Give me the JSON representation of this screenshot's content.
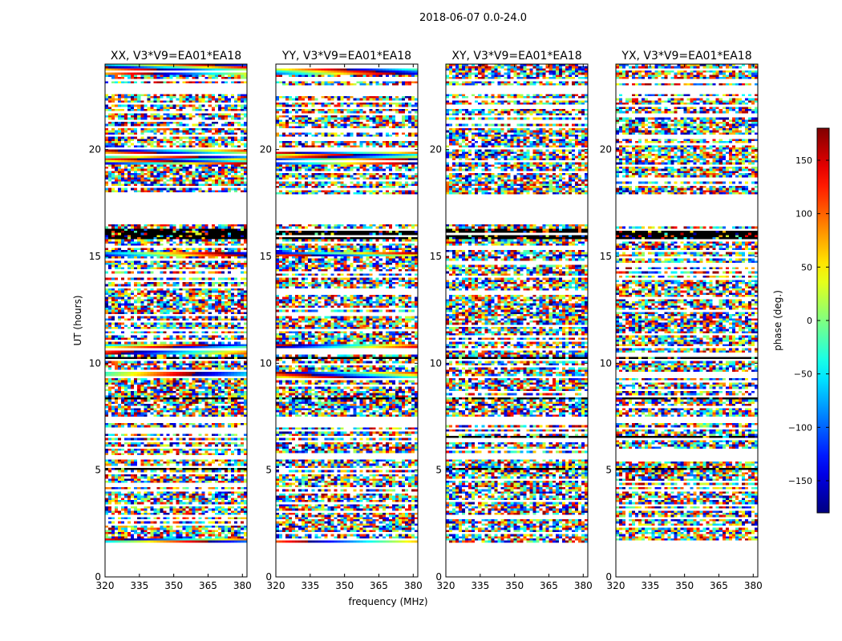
{
  "chart_data": {
    "type": "heatmap",
    "title": "2018-06-07 0.0-24.0",
    "xlabel": "frequency (MHz)",
    "ylabel": "UT (hours)",
    "xlim": [
      320,
      382
    ],
    "ylim": [
      0,
      24
    ],
    "xticks": [
      320,
      335,
      350,
      365,
      380
    ],
    "yticks": [
      0,
      5,
      10,
      15,
      20
    ],
    "panels": [
      {
        "title": "XX, V3*V9=EA01*EA18"
      },
      {
        "title": "YY, V3*V9=EA01*EA18"
      },
      {
        "title": "XY, V3*V9=EA01*EA18"
      },
      {
        "title": "YX, V3*V9=EA01*EA18"
      }
    ],
    "colorbar": {
      "label": "phase (deg.)",
      "range": [
        -180,
        180
      ],
      "ticks": [
        -150,
        -100,
        -50,
        0,
        50,
        100,
        150
      ],
      "colormap": "jet"
    },
    "data_rows": {
      "start_hour": 1.6,
      "end_hour": 24.0,
      "gaps_hours": [
        [
          0.0,
          1.6
        ],
        [
          16.5,
          17.9
        ],
        [
          22.6,
          23.0
        ],
        [
          23.25,
          23.35
        ],
        [
          5.5,
          5.7
        ],
        [
          7.2,
          7.5
        ]
      ],
      "dark_bands_hours": [
        [
          15.8,
          16.3
        ],
        [
          8.3,
          8.45
        ],
        [
          10.2,
          10.3
        ],
        [
          6.5,
          6.6
        ],
        [
          5.0,
          5.1
        ]
      ],
      "coherent_bands_hours": [
        [
          23.5,
          24.0
        ],
        [
          19.3,
          20.0
        ],
        [
          15.0,
          15.2
        ],
        [
          10.4,
          10.9
        ],
        [
          9.3,
          9.6
        ],
        [
          1.6,
          1.8
        ]
      ]
    }
  }
}
